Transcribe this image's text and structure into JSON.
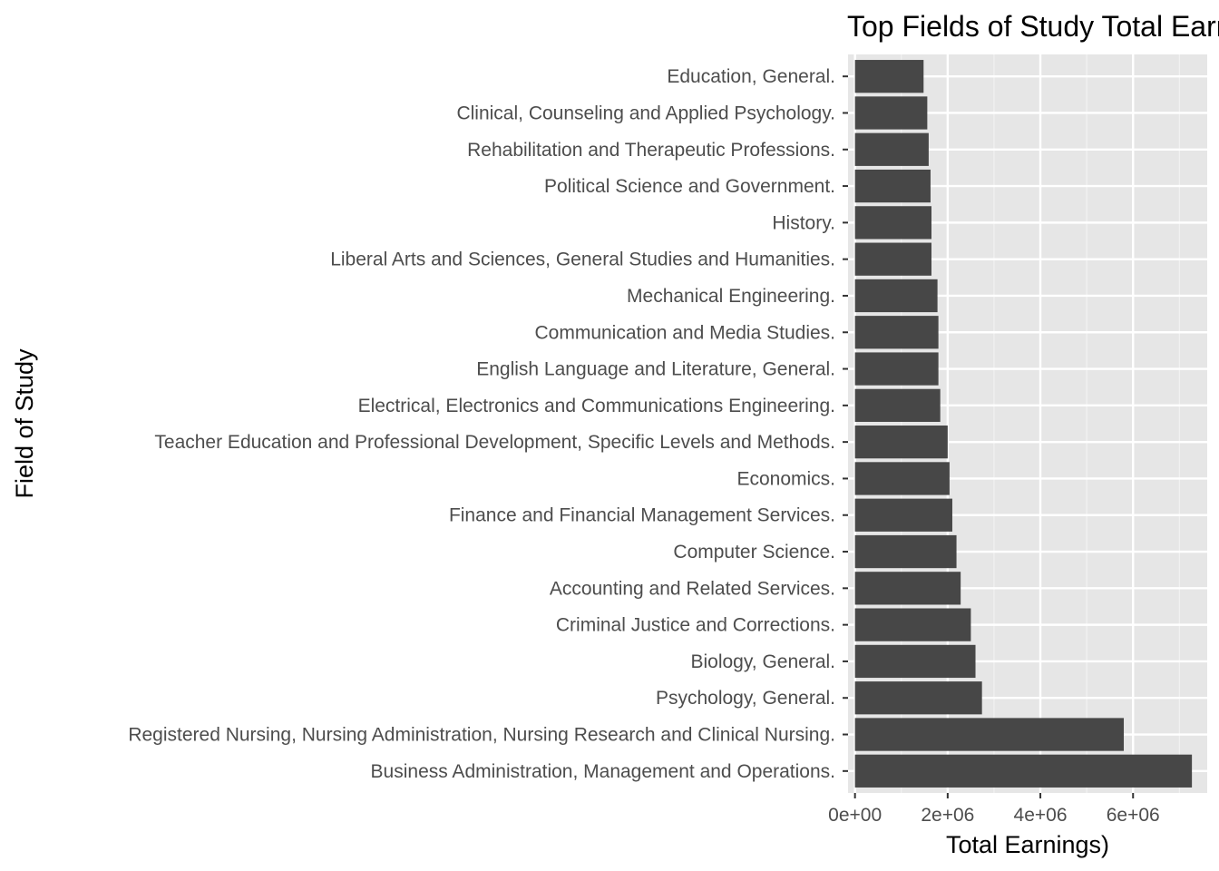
{
  "chart_data": {
    "type": "bar",
    "orientation": "horizontal",
    "title": "Top Fields of Study Total Earnings",
    "xlabel": "Total Earnings)",
    "ylabel": "Field of Study",
    "xlim": [
      -150000,
      7600000
    ],
    "x_ticks": [
      0,
      2000000,
      4000000,
      6000000
    ],
    "x_tick_labels": [
      "0e+00",
      "2e+06",
      "4e+06",
      "6e+06"
    ],
    "categories": [
      "Education, General.",
      "Clinical, Counseling and Applied Psychology.",
      "Rehabilitation and Therapeutic Professions.",
      "Political Science and Government.",
      "History.",
      "Liberal Arts and Sciences, General Studies and Humanities.",
      "Mechanical Engineering.",
      "Communication and Media Studies.",
      "English Language and Literature, General.",
      "Electrical, Electronics and Communications Engineering.",
      "Teacher Education and Professional Development, Specific Levels and Methods.",
      "Economics.",
      "Finance and Financial Management Services.",
      "Computer Science.",
      "Accounting and Related Services.",
      "Criminal Justice and Corrections.",
      "Biology, General.",
      "Psychology, General.",
      "Registered Nursing, Nursing Administration, Nursing Research and Clinical Nursing.",
      "Business Administration, Management and Operations."
    ],
    "values": [
      1480000,
      1560000,
      1590000,
      1630000,
      1650000,
      1650000,
      1780000,
      1800000,
      1800000,
      1840000,
      2000000,
      2040000,
      2100000,
      2190000,
      2280000,
      2500000,
      2600000,
      2740000,
      5800000,
      7270000
    ],
    "bar_color": "#474747",
    "panel_color": "#e6e6e6",
    "grid": true
  }
}
